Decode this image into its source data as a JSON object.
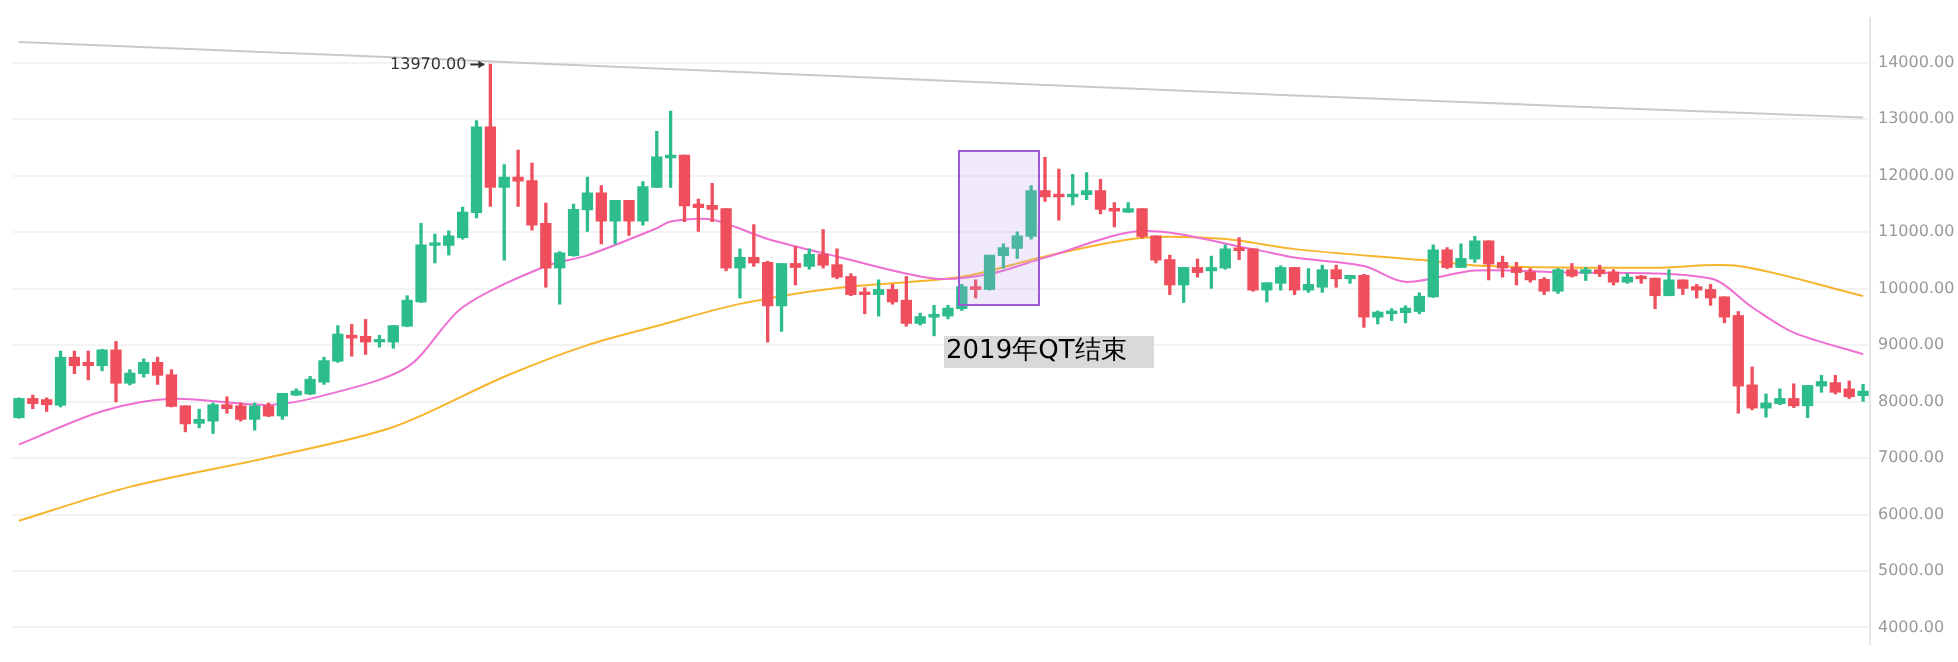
{
  "chart_data": {
    "type": "candlestick",
    "categories": [
      null,
      null,
      null,
      null,
      null,
      null,
      null,
      null,
      null,
      null,
      null,
      null,
      null,
      null,
      null,
      null,
      null,
      null,
      null,
      null,
      null,
      null,
      null,
      null,
      null,
      null,
      null,
      null,
      null,
      null,
      null,
      null,
      null,
      null,
      null,
      null,
      null,
      null,
      null,
      null,
      null,
      null,
      null,
      null,
      null,
      null,
      null,
      null,
      null,
      null,
      null,
      null,
      null,
      null,
      null,
      null,
      null,
      null,
      null,
      null,
      null,
      null,
      null,
      null,
      null,
      null,
      null,
      null,
      null,
      null,
      null,
      null,
      null,
      null,
      null,
      null,
      null,
      null,
      null,
      null,
      null,
      null,
      null,
      null,
      null,
      null,
      null,
      null,
      null,
      null,
      null,
      null,
      null,
      null,
      null,
      null,
      null,
      null,
      null,
      null,
      null,
      null,
      null,
      null,
      null,
      null,
      null,
      null,
      null,
      null,
      null,
      null,
      null,
      null,
      null,
      null,
      null,
      null,
      null,
      null,
      null,
      null,
      null,
      null,
      null,
      null,
      null,
      null,
      null,
      null,
      null,
      null,
      null,
      null
    ],
    "ohlc": [
      [
        7720,
        8060,
        7710,
        8050
      ],
      [
        8050,
        8110,
        7880,
        7970
      ],
      [
        8030,
        8060,
        7830,
        7950
      ],
      [
        7940,
        8890,
        7910,
        8780
      ],
      [
        8780,
        8890,
        8500,
        8640
      ],
      [
        8690,
        8890,
        8390,
        8640
      ],
      [
        8640,
        8920,
        8550,
        8910
      ],
      [
        8910,
        9060,
        8000,
        8330
      ],
      [
        8330,
        8560,
        8300,
        8500
      ],
      [
        8500,
        8750,
        8440,
        8690
      ],
      [
        8690,
        8780,
        8310,
        8470
      ],
      [
        8470,
        8560,
        7910,
        7920
      ],
      [
        7920,
        7920,
        7470,
        7610
      ],
      [
        7620,
        7860,
        7540,
        7680
      ],
      [
        7660,
        7970,
        7440,
        7940
      ],
      [
        7940,
        8080,
        7800,
        7880
      ],
      [
        7920,
        7970,
        7660,
        7690
      ],
      [
        7690,
        7970,
        7500,
        7920
      ],
      [
        7920,
        7970,
        7740,
        7750
      ],
      [
        7750,
        8140,
        7690,
        8140
      ],
      [
        8120,
        8220,
        8110,
        8180
      ],
      [
        8140,
        8440,
        8130,
        8390
      ],
      [
        8350,
        8780,
        8310,
        8720
      ],
      [
        8720,
        9340,
        8700,
        9190
      ],
      [
        9170,
        9360,
        8810,
        9130
      ],
      [
        9150,
        9450,
        8840,
        9060
      ],
      [
        9060,
        9170,
        8970,
        9080
      ],
      [
        9060,
        9340,
        8950,
        9340
      ],
      [
        9340,
        9870,
        9330,
        9790
      ],
      [
        9770,
        11150,
        9760,
        10770
      ],
      [
        10770,
        10960,
        10460,
        10790
      ],
      [
        10770,
        11020,
        10600,
        10930
      ],
      [
        10910,
        11440,
        10880,
        11350
      ],
      [
        11350,
        12970,
        11260,
        12860
      ],
      [
        12860,
        13970,
        11460,
        11800
      ],
      [
        11800,
        12190,
        10510,
        11970
      ],
      [
        11970,
        12450,
        11460,
        11910
      ],
      [
        11910,
        12220,
        11040,
        11130
      ],
      [
        11150,
        11510,
        10030,
        10370
      ],
      [
        10370,
        10650,
        9730,
        10630
      ],
      [
        10590,
        11490,
        10580,
        11400
      ],
      [
        11400,
        11970,
        11020,
        11690
      ],
      [
        11690,
        11820,
        10800,
        11200
      ],
      [
        11200,
        11560,
        10800,
        11560
      ],
      [
        11560,
        11560,
        10950,
        11200
      ],
      [
        11200,
        11890,
        11130,
        11800
      ],
      [
        11800,
        12780,
        11800,
        12330
      ],
      [
        12320,
        13140,
        11800,
        12360
      ],
      [
        12360,
        12360,
        11190,
        11470
      ],
      [
        11490,
        11580,
        11020,
        11440
      ],
      [
        11470,
        11860,
        11190,
        11410
      ],
      [
        11410,
        11410,
        10320,
        10370
      ],
      [
        10370,
        10700,
        9840,
        10550
      ],
      [
        10550,
        11130,
        10400,
        10460
      ],
      [
        10460,
        10480,
        9060,
        9700
      ],
      [
        9700,
        10440,
        9250,
        10440
      ],
      [
        10440,
        10740,
        10070,
        10380
      ],
      [
        10400,
        10700,
        10350,
        10600
      ],
      [
        10600,
        11040,
        10370,
        10420
      ],
      [
        10420,
        10700,
        10180,
        10210
      ],
      [
        10210,
        10260,
        9880,
        9900
      ],
      [
        9930,
        10010,
        9560,
        9900
      ],
      [
        9900,
        10150,
        9520,
        9980
      ],
      [
        9980,
        10070,
        9730,
        9770
      ],
      [
        9790,
        10210,
        9340,
        9390
      ],
      [
        9390,
        9560,
        9360,
        9500
      ],
      [
        9500,
        9700,
        9170,
        9540
      ],
      [
        9520,
        9700,
        9470,
        9650
      ],
      [
        9650,
        10070,
        9620,
        10030
      ],
      [
        10030,
        10150,
        9840,
        9990
      ],
      [
        9990,
        10590,
        9980,
        10590
      ],
      [
        10590,
        10790,
        10370,
        10720
      ],
      [
        10720,
        11000,
        10540,
        10930
      ],
      [
        10930,
        11820,
        10880,
        11730
      ],
      [
        11730,
        12320,
        11550,
        11630
      ],
      [
        11670,
        12110,
        11220,
        11630
      ],
      [
        11630,
        12020,
        11490,
        11670
      ],
      [
        11670,
        12050,
        11580,
        11730
      ],
      [
        11730,
        11930,
        11330,
        11410
      ],
      [
        11410,
        11520,
        11100,
        11380
      ],
      [
        11360,
        11520,
        11350,
        11410
      ],
      [
        11410,
        11410,
        10900,
        10930
      ],
      [
        10930,
        10930,
        10460,
        10510
      ],
      [
        10510,
        10590,
        9900,
        10070
      ],
      [
        10070,
        10370,
        9760,
        10370
      ],
      [
        10370,
        10520,
        10210,
        10290
      ],
      [
        10320,
        10570,
        10010,
        10370
      ],
      [
        10370,
        10770,
        10350,
        10700
      ],
      [
        10700,
        10900,
        10520,
        10680
      ],
      [
        10700,
        10700,
        9960,
        9980
      ],
      [
        9980,
        10100,
        9770,
        10100
      ],
      [
        10100,
        10400,
        9980,
        10370
      ],
      [
        10370,
        10370,
        9900,
        9980
      ],
      [
        9980,
        10350,
        9940,
        10070
      ],
      [
        10030,
        10410,
        9940,
        10330
      ],
      [
        10330,
        10410,
        10030,
        10180
      ],
      [
        10180,
        10230,
        10100,
        10230
      ],
      [
        10230,
        10250,
        9320,
        9500
      ],
      [
        9500,
        9600,
        9380,
        9580
      ],
      [
        9560,
        9640,
        9440,
        9600
      ],
      [
        9580,
        9690,
        9400,
        9650
      ],
      [
        9600,
        9920,
        9560,
        9860
      ],
      [
        9860,
        10770,
        9850,
        10680
      ],
      [
        10680,
        10720,
        10360,
        10380
      ],
      [
        10380,
        10790,
        10380,
        10530
      ],
      [
        10530,
        10920,
        10470,
        10840
      ],
      [
        10840,
        10840,
        10160,
        10440
      ],
      [
        10460,
        10570,
        10210,
        10370
      ],
      [
        10370,
        10460,
        10070,
        10290
      ],
      [
        10290,
        10350,
        10120,
        10160
      ],
      [
        10160,
        10190,
        9900,
        9960
      ],
      [
        9960,
        10350,
        9920,
        10330
      ],
      [
        10330,
        10440,
        10210,
        10230
      ],
      [
        10280,
        10370,
        10150,
        10330
      ],
      [
        10330,
        10410,
        10220,
        10270
      ],
      [
        10290,
        10330,
        10070,
        10120
      ],
      [
        10120,
        10260,
        10100,
        10200
      ],
      [
        10200,
        10230,
        10100,
        10180
      ],
      [
        10180,
        10180,
        9650,
        9880
      ],
      [
        9880,
        10330,
        9880,
        10150
      ],
      [
        10150,
        10150,
        9900,
        10010
      ],
      [
        10030,
        10070,
        9840,
        9980
      ],
      [
        9980,
        10070,
        9710,
        9840
      ],
      [
        9850,
        9850,
        9400,
        9500
      ],
      [
        9520,
        9590,
        7800,
        8280
      ],
      [
        8290,
        8610,
        7860,
        7890
      ],
      [
        7890,
        8130,
        7730,
        7970
      ],
      [
        7970,
        8220,
        7950,
        8050
      ],
      [
        8050,
        8310,
        7900,
        7930
      ],
      [
        7930,
        8280,
        7720,
        8280
      ],
      [
        8280,
        8460,
        8170,
        8350
      ],
      [
        8330,
        8460,
        8140,
        8170
      ],
      [
        8220,
        8360,
        8060,
        8090
      ],
      [
        8110,
        8300,
        8010,
        8180
      ]
    ],
    "series": [
      {
        "type": "line",
        "color": "#ee6fd3",
        "values": [
          7240,
          null,
          null,
          null,
          null,
          null,
          7830,
          null,
          null,
          null,
          null,
          8050,
          null,
          null,
          null,
          null,
          null,
          null,
          7940,
          null,
          null,
          null,
          8110,
          null,
          null,
          null,
          null,
          null,
          8610,
          null,
          null,
          null,
          9670,
          null,
          null,
          null,
          null,
          null,
          10400,
          null,
          null,
          10590,
          null,
          null,
          null,
          null,
          11070,
          11190,
          null,
          null,
          11220,
          null,
          null,
          null,
          10880,
          null,
          null,
          null,
          null,
          10570,
          null,
          null,
          null,
          null,
          null,
          null,
          10180,
          null,
          null,
          null,
          10260,
          null,
          null,
          null,
          10550,
          null,
          null,
          null,
          null,
          null,
          null,
          11020,
          null,
          null,
          null,
          null,
          null,
          null,
          null,
          10700,
          null,
          null,
          10550,
          null,
          null,
          null,
          null,
          10400,
          null,
          null,
          10120,
          null,
          null,
          null,
          null,
          10320,
          null,
          null,
          null,
          null,
          null,
          10290,
          null,
          null,
          null,
          null,
          null,
          null,
          null,
          null,
          null,
          null,
          10180,
          null,
          null,
          9670,
          null,
          null,
          9220,
          null,
          null,
          null,
          null,
          8840
        ]
      },
      {
        "type": "line",
        "color": "#f6b52c",
        "values": [
          5890,
          null,
          null,
          null,
          null,
          null,
          null,
          null,
          6490,
          null,
          null,
          null,
          null,
          null,
          null,
          null,
          null,
          null,
          7010,
          null,
          null,
          null,
          null,
          null,
          null,
          null,
          null,
          7550,
          null,
          null,
          null,
          null,
          null,
          null,
          null,
          8440,
          null,
          null,
          null,
          null,
          null,
          9000,
          null,
          null,
          null,
          null,
          9340,
          null,
          null,
          null,
          null,
          null,
          9730,
          null,
          null,
          null,
          null,
          null,
          null,
          10010,
          null,
          null,
          null,
          null,
          null,
          null,
          null,
          null,
          10210,
          null,
          null,
          null,
          null,
          null,
          10570,
          null,
          null,
          null,
          null,
          null,
          null,
          10900,
          null,
          null,
          null,
          null,
          null,
          10880,
          null,
          null,
          null,
          null,
          10700,
          null,
          null,
          null,
          null,
          null,
          null,
          null,
          null,
          10510,
          null,
          null,
          null,
          null,
          10400,
          null,
          null,
          null,
          null,
          null,
          null,
          null,
          null,
          null,
          null,
          null,
          10370,
          null,
          null,
          null,
          null,
          null,
          10400,
          null,
          null,
          null,
          null,
          null,
          null,
          null,
          null,
          9870
        ]
      },
      {
        "type": "line",
        "color": "#c9c9c9",
        "values": [
          14370,
          null,
          null,
          null,
          null,
          null,
          null,
          null,
          null,
          null,
          null,
          null,
          null,
          null,
          null,
          null,
          null,
          null,
          null,
          null,
          null,
          null,
          null,
          null,
          null,
          null,
          null,
          null,
          null,
          null,
          null,
          null,
          null,
          null,
          null,
          null,
          null,
          null,
          null,
          null,
          null,
          null,
          null,
          null,
          null,
          null,
          13900,
          null,
          null,
          null,
          null,
          null,
          null,
          null,
          null,
          null,
          null,
          null,
          null,
          null,
          null,
          null,
          null,
          null,
          null,
          null,
          null,
          null,
          null,
          null,
          null,
          null,
          null,
          null,
          null,
          null,
          null,
          null,
          null,
          null,
          null,
          null,
          null,
          null,
          null,
          null,
          null,
          null,
          null,
          null,
          null,
          null,
          13420,
          null,
          null,
          null,
          null,
          null,
          null,
          null,
          null,
          null,
          null,
          null,
          null,
          null,
          null,
          null,
          null,
          null,
          null,
          null,
          null,
          null,
          null,
          null,
          null,
          null,
          null,
          null,
          null,
          null,
          null,
          null,
          null,
          null,
          null,
          null,
          null,
          null,
          null,
          null,
          null,
          13030
        ]
      }
    ],
    "ylim": [
      3700,
      14800
    ],
    "yticks": [
      {
        "value": 4000,
        "label": "4000.00"
      },
      {
        "value": 5000,
        "label": "5000.00"
      },
      {
        "value": 6000,
        "label": "6000.00"
      },
      {
        "value": 7000,
        "label": "7000.00"
      },
      {
        "value": 8000,
        "label": "8000.00"
      },
      {
        "value": 9000,
        "label": "9000.00"
      },
      {
        "value": 10000,
        "label": "10000.00"
      },
      {
        "value": 11000,
        "label": "11000.00"
      },
      {
        "value": 12000,
        "label": "12000.00"
      },
      {
        "value": 13000,
        "label": "13000.00"
      },
      {
        "value": 14000,
        "label": "14000.00"
      }
    ],
    "grid": "y",
    "tick_labels": "y",
    "legend": false,
    "annotations": [
      {
        "text": "13970.00",
        "y": 13970
      },
      "2019年QT结束"
    ]
  }
}
